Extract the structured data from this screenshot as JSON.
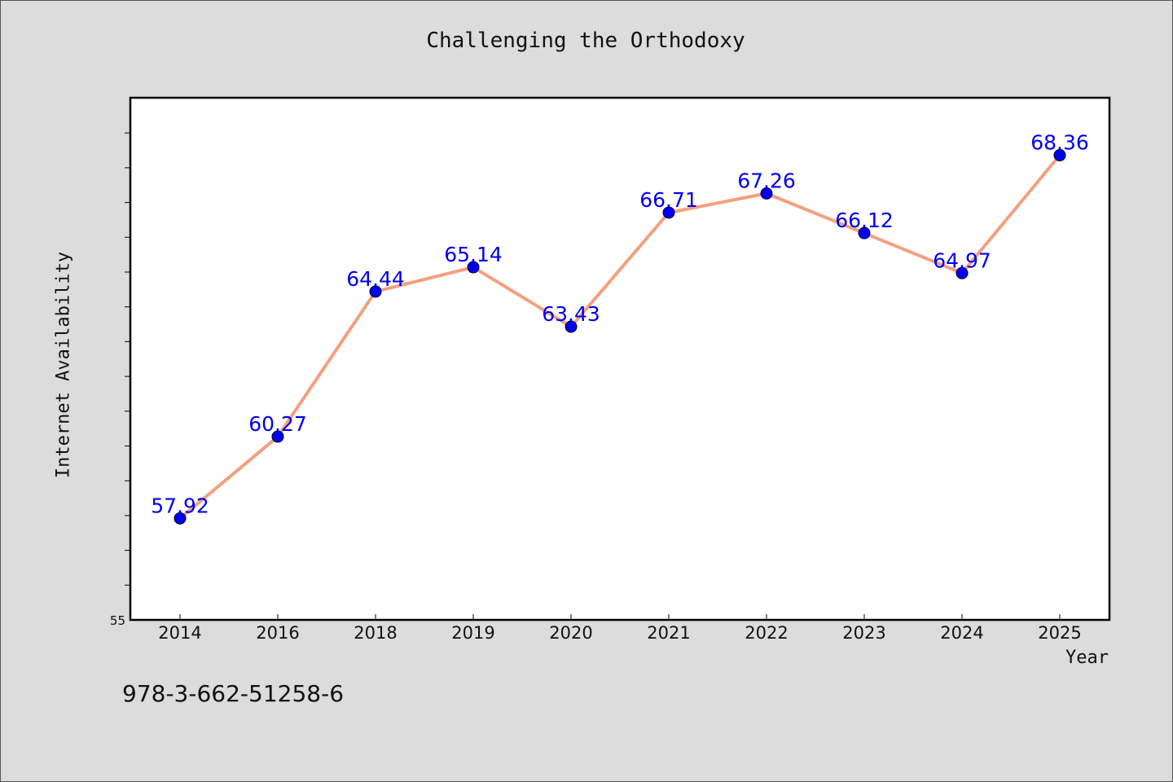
{
  "chart_data": {
    "type": "line",
    "title": "Challenging the Orthodoxy",
    "xlabel": "Year",
    "ylabel": "Internet Availability",
    "categories": [
      "2014",
      "2016",
      "2018",
      "2019",
      "2020",
      "2021",
      "2022",
      "2023",
      "2024",
      "2025"
    ],
    "series": [
      {
        "values": [
          57.92,
          60.27,
          64.44,
          65.14,
          63.43,
          66.71,
          67.26,
          66.12,
          64.97,
          68.36
        ]
      }
    ],
    "data_labels": [
      "57.92",
      "60.27",
      "64.44",
      "65.14",
      "63.43",
      "66.71",
      "67.26",
      "66.12",
      "64.97",
      "68.36"
    ],
    "ylim": [
      55,
      70
    ],
    "y_tick_step": 1,
    "y_tick_labels": [
      "55"
    ],
    "grid": false,
    "line_color": "#f4a07e",
    "marker_color": "#0000ee",
    "label_color": "#0000ee"
  },
  "footer": {
    "isbn": "978-3-662-51258-6"
  }
}
